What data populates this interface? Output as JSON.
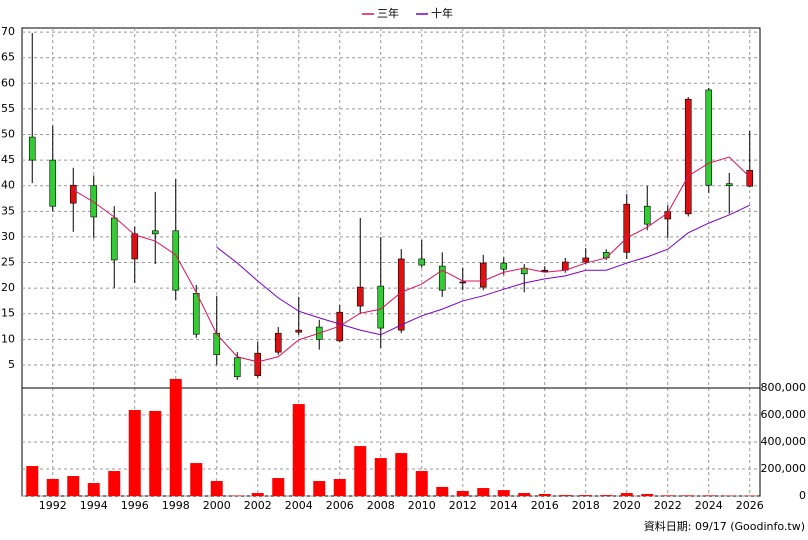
{
  "chart_data": {
    "type": "candlestick",
    "x": [
      1991,
      1992,
      1993,
      1994,
      1995,
      1996,
      1997,
      1998,
      1999,
      2000,
      2001,
      2002,
      2003,
      2004,
      2005,
      2006,
      2007,
      2008,
      2009,
      2010,
      2011,
      2012,
      2013,
      2014,
      2015,
      2016,
      2017,
      2018,
      2019,
      2020,
      2021,
      2022,
      2023,
      2024,
      2025,
      2026
    ],
    "open": [
      49.5,
      45,
      36.6,
      40,
      33.7,
      25.7,
      31.2,
      31.2,
      19,
      11.2,
      6.4,
      2.9,
      7.5,
      11.4,
      12.4,
      9.7,
      16.5,
      20.4,
      11.8,
      25.7,
      24.3,
      21.2,
      20.2,
      24.9,
      23.9,
      23.5,
      23.5,
      25.1,
      27,
      27,
      36,
      33.5,
      34.5,
      58.7,
      40.4,
      39.9
    ],
    "high": [
      69.8,
      51.7,
      43.5,
      42,
      36,
      32,
      38.8,
      41.3,
      20.6,
      18.5,
      7.5,
      9.5,
      12.4,
      18.3,
      13.8,
      16.7,
      33.7,
      30,
      27.6,
      29.4,
      27,
      24,
      26.5,
      26,
      24.7,
      24.3,
      25.9,
      27.8,
      27.6,
      38.4,
      40,
      36.2,
      57.3,
      59.1,
      42.5,
      50.7
    ],
    "low": [
      40.5,
      35,
      31,
      29.8,
      20,
      21,
      24.7,
      17.7,
      10.3,
      5,
      2.1,
      2.5,
      7,
      10.9,
      8,
      9.5,
      15,
      8.3,
      11.2,
      24,
      18.3,
      19.6,
      19.6,
      22.6,
      19.2,
      23.1,
      23,
      24.7,
      25.5,
      25.7,
      31.3,
      29.8,
      34,
      38.6,
      34.5,
      39.7
    ],
    "close": [
      45,
      36,
      40.1,
      33.9,
      25.5,
      30.6,
      30.6,
      19.6,
      11,
      7,
      2.7,
      7.3,
      11.2,
      11.8,
      10,
      15.3,
      20.2,
      12.2,
      25.7,
      24.5,
      19.6,
      21.2,
      24.9,
      23.7,
      22.8,
      23.5,
      25.1,
      25.9,
      25.9,
      36.4,
      32.5,
      34.9,
      56.9,
      40.1,
      40,
      43
    ],
    "up_color": "#dd1111",
    "down_color": "#33cc33",
    "xlim": [
      1990.5,
      2026.5
    ],
    "xticks": [
      1992,
      1994,
      1996,
      1998,
      2000,
      2002,
      2004,
      2006,
      2008,
      2010,
      2012,
      2014,
      2016,
      2018,
      2020,
      2022,
      2024,
      2026
    ],
    "ylim": [
      0.5,
      70.8
    ],
    "yticks": [
      5,
      10,
      15,
      20,
      25,
      30,
      35,
      40,
      45,
      50,
      55,
      60,
      65,
      70
    ],
    "grid": true,
    "series": [
      {
        "name": "三年",
        "color": "#e0105a",
        "values": [
          null,
          null,
          39.2,
          36.8,
          33.9,
          30.4,
          29.2,
          26.5,
          19.2,
          11,
          6.6,
          5.6,
          6.6,
          9.9,
          11.2,
          12.6,
          15.1,
          15.9,
          19.2,
          20.8,
          23.5,
          21.4,
          21.4,
          23.1,
          23.9,
          23.1,
          23.5,
          24.9,
          25.9,
          29.8,
          31.9,
          34.7,
          41.9,
          44.4,
          45.6,
          41.7
        ]
      },
      {
        "name": "十年",
        "color": "#7a00cc",
        "values": [
          null,
          null,
          null,
          null,
          null,
          null,
          null,
          null,
          null,
          28,
          24.9,
          21.4,
          18.1,
          15.5,
          14.2,
          13,
          11.8,
          10.9,
          12.8,
          14.6,
          15.9,
          17.5,
          18.5,
          19.8,
          21,
          21.8,
          22.4,
          23.5,
          23.5,
          24.9,
          26.1,
          27.6,
          30.8,
          32.7,
          34.3,
          36.2
        ]
      }
    ],
    "volume": {
      "color": "#ff0000",
      "values": [
        222000,
        126000,
        148000,
        96000,
        185000,
        637000,
        630000,
        867000,
        244000,
        111000,
        4000,
        22000,
        133000,
        681000,
        111000,
        126000,
        370000,
        281000,
        318000,
        185000,
        67000,
        37000,
        59000,
        44000,
        22000,
        15000,
        7000,
        7000,
        7000,
        22000,
        15000,
        5000,
        5000,
        5000,
        3000,
        3000
      ],
      "ylim": [
        0,
        800000
      ],
      "yticks": [
        0,
        {
          "value": 200000,
          "label": "200,000"
        },
        {
          "value": 400000,
          "label": "400,000"
        },
        {
          "value": 600000,
          "label": "600,000"
        },
        {
          "value": 800000,
          "label": "800,000"
        }
      ]
    },
    "note": "資料日期: 09/17  (Goodinfo.tw)"
  }
}
